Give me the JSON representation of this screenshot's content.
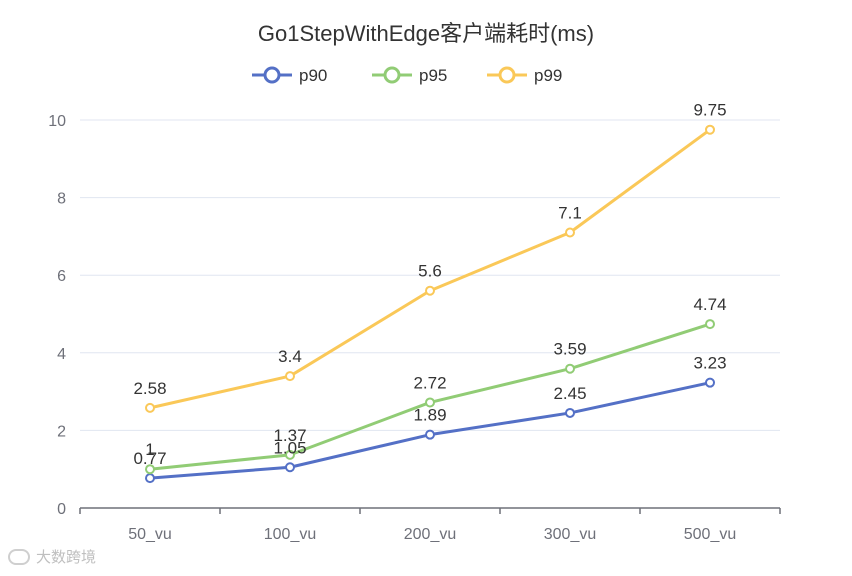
{
  "chart_data": {
    "type": "line",
    "title": "Go1StepWithEdge客户端耗时(ms)",
    "categories": [
      "50_vu",
      "100_vu",
      "200_vu",
      "300_vu",
      "500_vu"
    ],
    "ylim": [
      0,
      10
    ],
    "yticks": [
      0,
      2,
      4,
      6,
      8,
      10
    ],
    "grid": true,
    "legend_position": "top-center",
    "series": [
      {
        "name": "p90",
        "color": "#5470c6",
        "values": [
          0.77,
          1.05,
          1.89,
          2.45,
          3.23
        ]
      },
      {
        "name": "p95",
        "color": "#91cc75",
        "values": [
          1,
          1.37,
          2.72,
          3.59,
          4.74
        ]
      },
      {
        "name": "p99",
        "color": "#fac858",
        "values": [
          2.58,
          3.4,
          5.6,
          7.1,
          9.75
        ]
      }
    ]
  },
  "watermark": {
    "text": "大数跨境"
  }
}
